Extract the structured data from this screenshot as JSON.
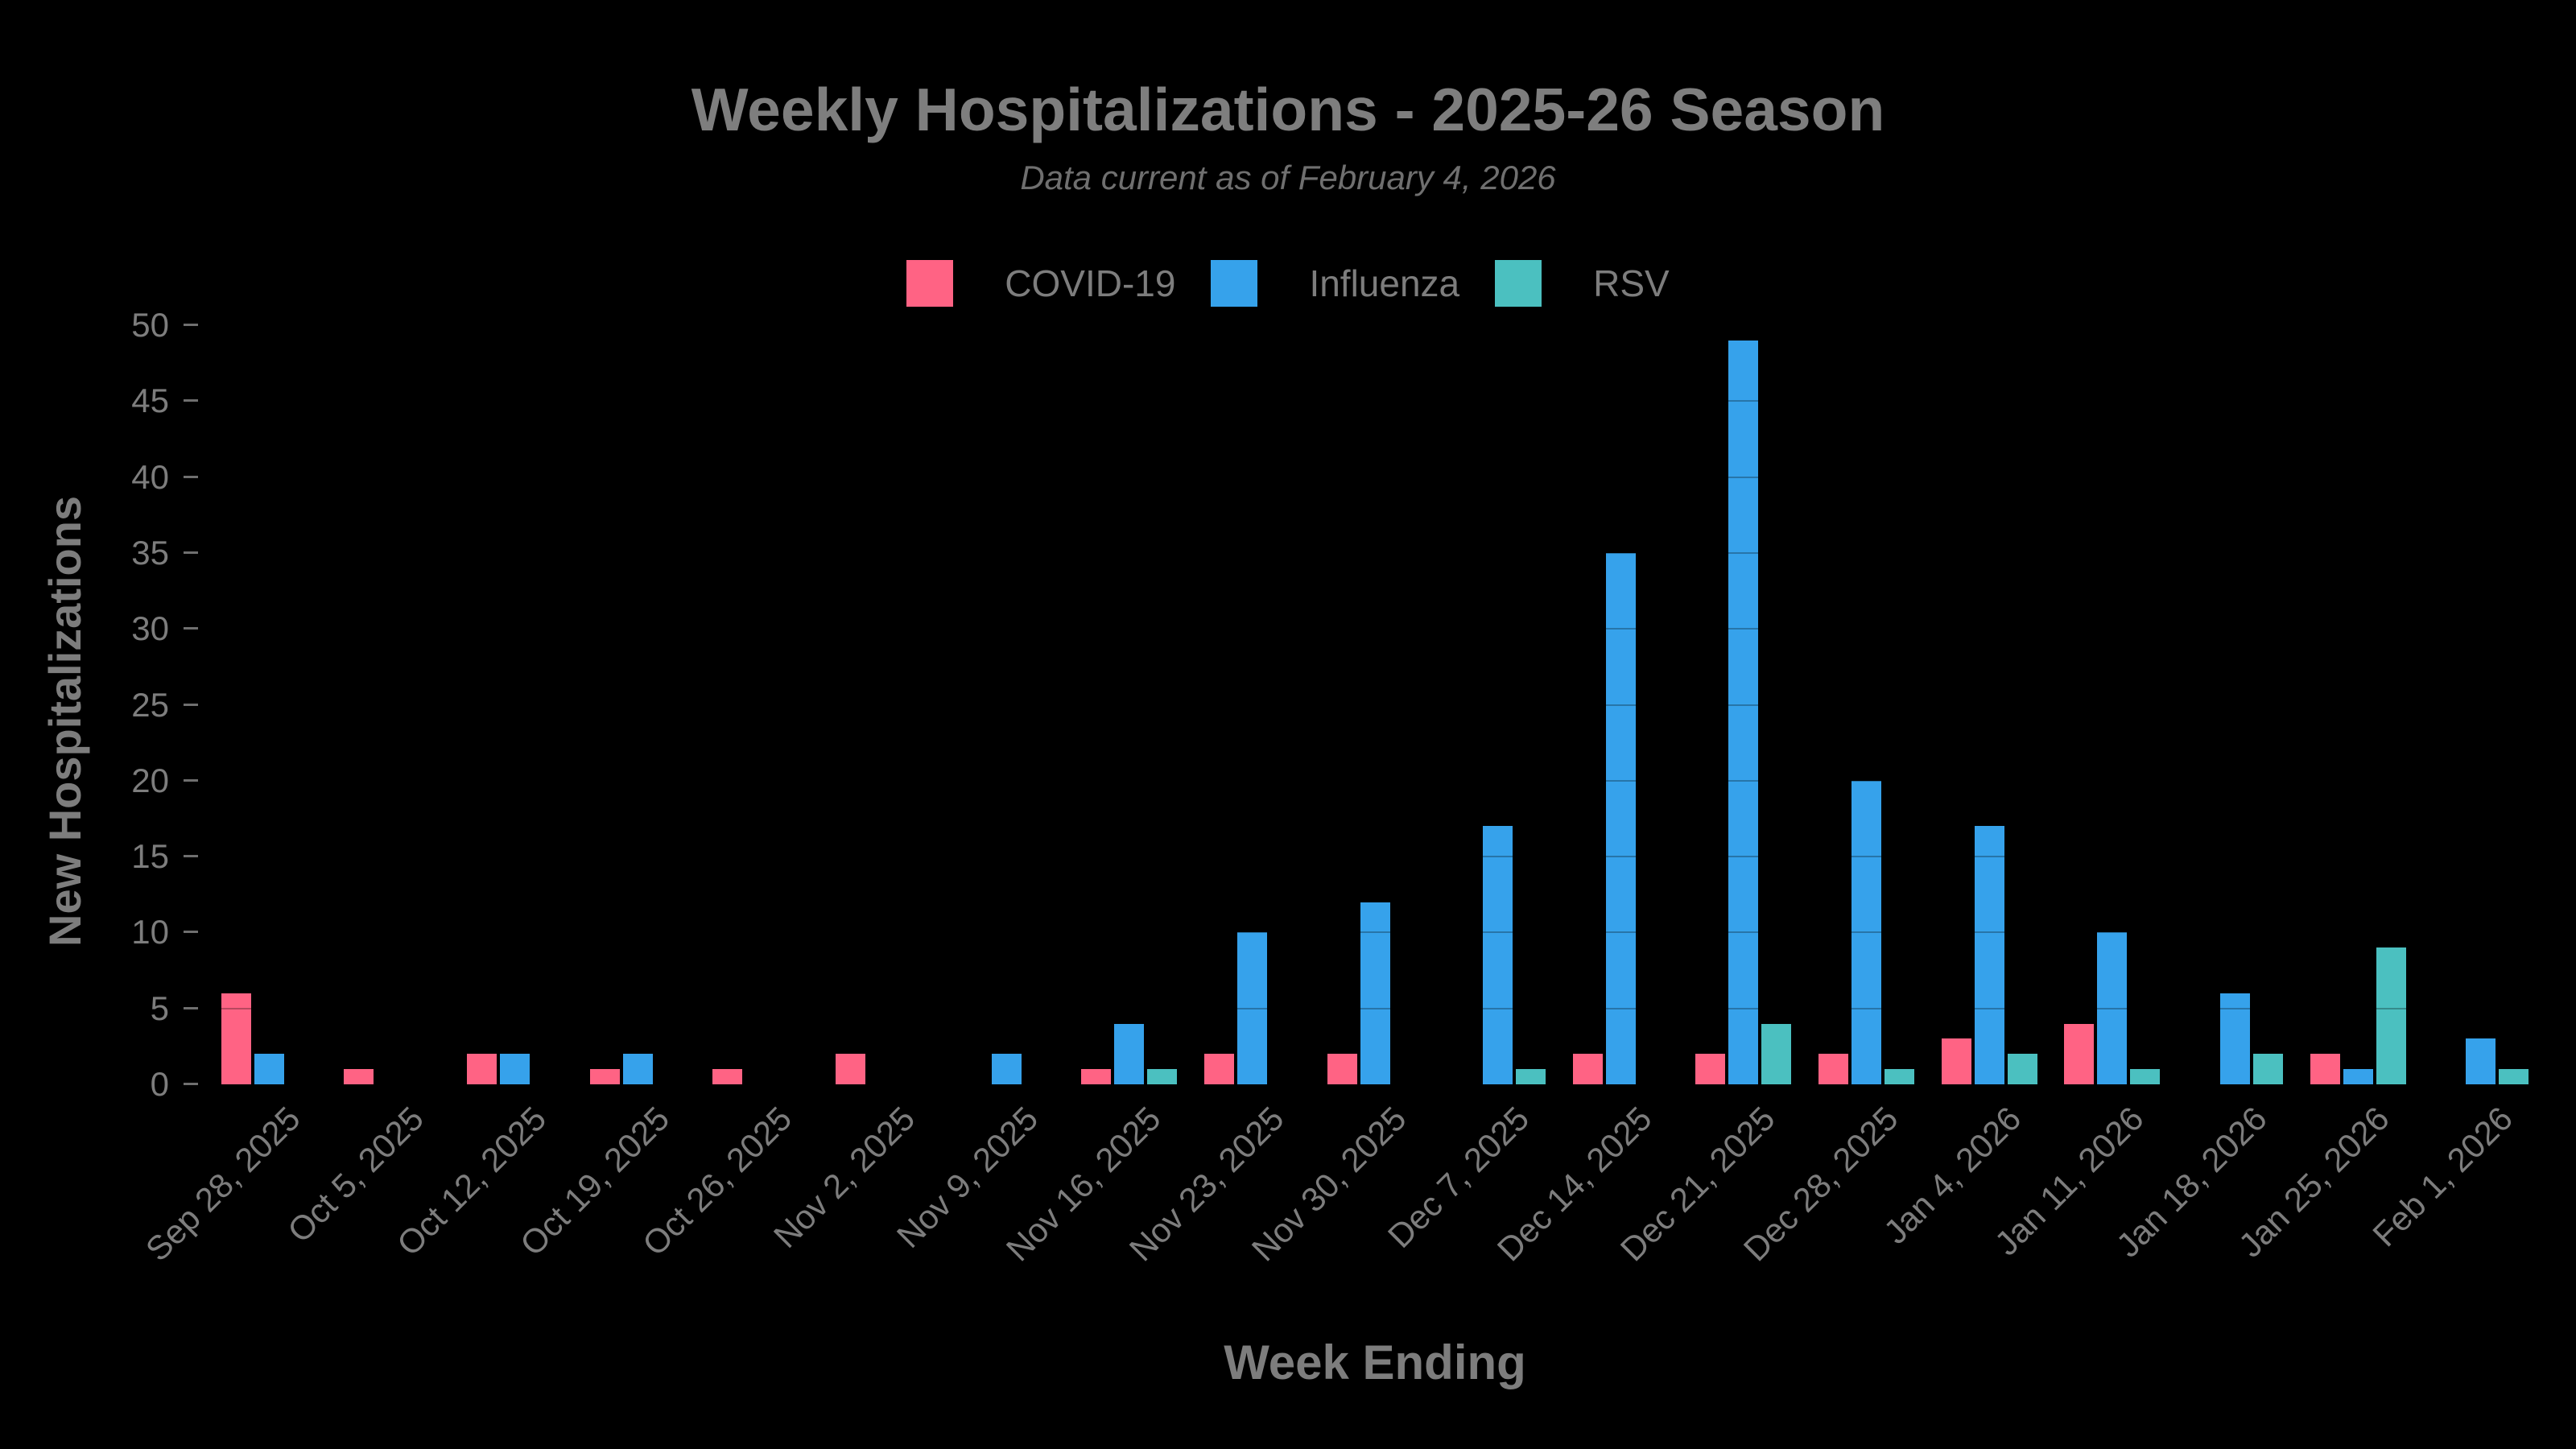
{
  "background": "#000000",
  "text_color": "#7d7d7d",
  "chart_data": {
    "type": "bar",
    "title": "Weekly Hospitalizations - 2025-26 Season",
    "subtitle": "Data current as of February 4, 2026",
    "xlabel": "Week Ending",
    "ylabel": "New Hospitalizations",
    "ylim": [
      0,
      50
    ],
    "ytick_step": 5,
    "legend_position": "top",
    "grid": "subtle gridlines every 5 units visible only over bars",
    "categories": [
      "Sep 28, 2025",
      "Oct 5, 2025",
      "Oct 12, 2025",
      "Oct 19, 2025",
      "Oct 26, 2025",
      "Nov 2, 2025",
      "Nov 9, 2025",
      "Nov 16, 2025",
      "Nov 23, 2025",
      "Nov 30, 2025",
      "Dec 7, 2025",
      "Dec 14, 2025",
      "Dec 21, 2025",
      "Dec 28, 2025",
      "Jan 4, 2026",
      "Jan 11, 2026",
      "Jan 18, 2026",
      "Jan 25, 2026",
      "Feb 1, 2026"
    ],
    "series": [
      {
        "name": "COVID-19",
        "color": "#FF6384",
        "values": [
          6,
          1,
          2,
          1,
          1,
          2,
          0,
          1,
          2,
          2,
          0,
          2,
          2,
          2,
          3,
          4,
          0,
          2,
          0
        ]
      },
      {
        "name": "Influenza",
        "color": "#36A2EB",
        "values": [
          2,
          0,
          2,
          2,
          0,
          0,
          2,
          4,
          10,
          12,
          17,
          35,
          49,
          20,
          17,
          10,
          6,
          1,
          3
        ]
      },
      {
        "name": "RSV",
        "color": "#4BC0C0",
        "values": [
          0,
          0,
          0,
          0,
          0,
          0,
          0,
          1,
          0,
          0,
          1,
          0,
          4,
          1,
          2,
          1,
          2,
          9,
          1
        ]
      }
    ]
  }
}
